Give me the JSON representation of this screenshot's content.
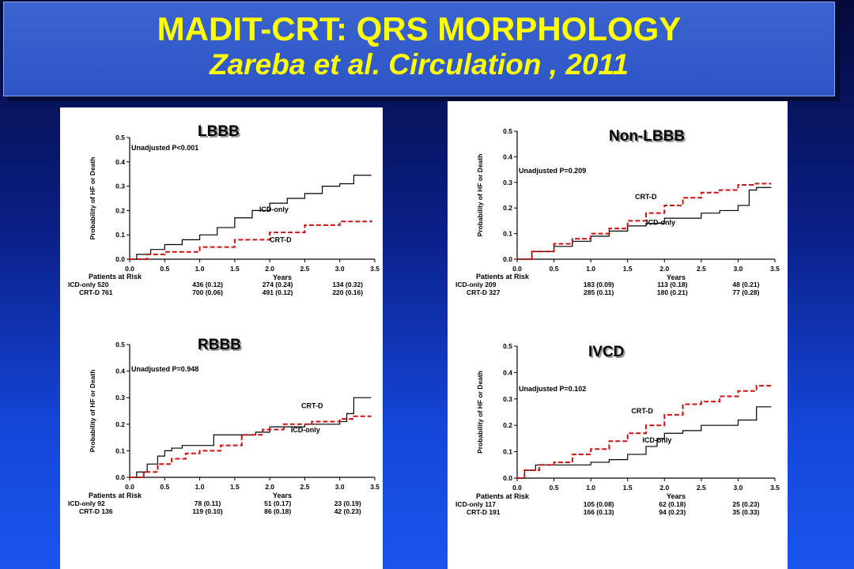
{
  "header": {
    "title": "MADIT-CRT: QRS MORPHOLOGY",
    "subtitle": "Zareba et al. Circulation , 2011"
  },
  "colors": {
    "icd": "#000000",
    "crt": "#cc1111",
    "title": "#ffff00"
  },
  "chart_data": [
    {
      "type": "line",
      "title": "LBBB",
      "ylabel": "Probability of HF or Death",
      "xlabel": "Years",
      "xlim": [
        0,
        3.5
      ],
      "ylim": [
        0,
        0.5
      ],
      "xticks": [
        "0.0",
        "0.5",
        "1.0",
        "1.5",
        "2.0",
        "2.5",
        "3.0",
        "3.5"
      ],
      "yticks": [
        "0.0",
        "0.1",
        "0.2",
        "0.3",
        "0.4",
        "0.5"
      ],
      "annotation": "Unadjusted P<0.001",
      "series": [
        {
          "name": "ICD-only",
          "style": "solid",
          "points": [
            [
              0,
              0
            ],
            [
              0.1,
              0.02
            ],
            [
              0.3,
              0.04
            ],
            [
              0.5,
              0.06
            ],
            [
              0.75,
              0.08
            ],
            [
              1.0,
              0.1
            ],
            [
              1.25,
              0.13
            ],
            [
              1.5,
              0.17
            ],
            [
              1.75,
              0.2
            ],
            [
              2.0,
              0.23
            ],
            [
              2.25,
              0.25
            ],
            [
              2.5,
              0.27
            ],
            [
              2.75,
              0.3
            ],
            [
              3.0,
              0.31
            ],
            [
              3.2,
              0.345
            ],
            [
              3.45,
              0.345
            ]
          ]
        },
        {
          "name": "CRT-D",
          "style": "dashed",
          "points": [
            [
              0,
              0
            ],
            [
              0.25,
              0.02
            ],
            [
              0.5,
              0.03
            ],
            [
              1.0,
              0.05
            ],
            [
              1.5,
              0.08
            ],
            [
              2.0,
              0.11
            ],
            [
              2.5,
              0.14
            ],
            [
              3.0,
              0.155
            ],
            [
              3.45,
              0.16
            ]
          ]
        }
      ],
      "labels": [
        {
          "text": "ICD-only",
          "x": 1.85,
          "y": 0.195
        },
        {
          "text": "CRT-D",
          "x": 2.0,
          "y": 0.07
        }
      ],
      "risk_header": "Patients at Risk",
      "risk_rows": [
        {
          "label": "ICD-only 520",
          "values": [
            "436 (0.12)",
            "274 (0.24)",
            "134 (0.32)"
          ]
        },
        {
          "label": "CRT-D 761",
          "values": [
            "700 (0.06)",
            "491 (0.12)",
            "220 (0.16)"
          ]
        }
      ]
    },
    {
      "type": "line",
      "title": "Non-LBBB",
      "ylabel": "Probability of HF or Death",
      "xlabel": "Years",
      "xlim": [
        0,
        3.5
      ],
      "ylim": [
        0,
        0.5
      ],
      "xticks": [
        "0.0",
        "0.5",
        "1.0",
        "1.5",
        "2.0",
        "2.5",
        "3.0",
        "3.5"
      ],
      "yticks": [
        "0.0",
        "0.1",
        "0.2",
        "0.3",
        "0.4",
        "0.5"
      ],
      "annotation": "Unadjusted P=0.209",
      "series": [
        {
          "name": "ICD-only",
          "style": "solid",
          "points": [
            [
              0,
              0
            ],
            [
              0.2,
              0.03
            ],
            [
              0.5,
              0.05
            ],
            [
              0.75,
              0.07
            ],
            [
              1.0,
              0.09
            ],
            [
              1.25,
              0.11
            ],
            [
              1.5,
              0.13
            ],
            [
              1.75,
              0.14
            ],
            [
              2.0,
              0.16
            ],
            [
              2.5,
              0.18
            ],
            [
              2.75,
              0.19
            ],
            [
              3.0,
              0.21
            ],
            [
              3.15,
              0.27
            ],
            [
              3.25,
              0.28
            ],
            [
              3.45,
              0.28
            ]
          ]
        },
        {
          "name": "CRT-D",
          "style": "dashed",
          "points": [
            [
              0,
              0
            ],
            [
              0.2,
              0.03
            ],
            [
              0.5,
              0.06
            ],
            [
              0.75,
              0.08
            ],
            [
              1.0,
              0.1
            ],
            [
              1.25,
              0.12
            ],
            [
              1.5,
              0.15
            ],
            [
              1.75,
              0.18
            ],
            [
              2.0,
              0.21
            ],
            [
              2.25,
              0.24
            ],
            [
              2.5,
              0.26
            ],
            [
              2.75,
              0.27
            ],
            [
              3.0,
              0.29
            ],
            [
              3.2,
              0.295
            ],
            [
              3.45,
              0.295
            ]
          ]
        }
      ],
      "labels": [
        {
          "text": "CRT-D",
          "x": 1.6,
          "y": 0.235
        },
        {
          "text": "ICD-only",
          "x": 1.75,
          "y": 0.135
        }
      ],
      "risk_header": "Patients at Risk",
      "risk_rows": [
        {
          "label": "ICD-only 209",
          "values": [
            "183 (0.09)",
            "113 (0.18)",
            "48 (0.21)"
          ]
        },
        {
          "label": "CRT-D 327",
          "values": [
            "285 (0.11)",
            "180 (0.21)",
            "77 (0.28)"
          ]
        }
      ]
    },
    {
      "type": "line",
      "title": "RBBB",
      "ylabel": "Probability of HF or Death",
      "xlabel": "Years",
      "xlim": [
        0,
        3.5
      ],
      "ylim": [
        0,
        0.5
      ],
      "xticks": [
        "0.0",
        "0.5",
        "1.0",
        "1.5",
        "2.0",
        "2.5",
        "3.0",
        "3.5"
      ],
      "yticks": [
        "0.0",
        "0.1",
        "0.2",
        "0.3",
        "0.4",
        "0.5"
      ],
      "annotation": "Unadjusted P=0.948",
      "series": [
        {
          "name": "ICD-only",
          "style": "solid",
          "points": [
            [
              0,
              0
            ],
            [
              0.1,
              0.02
            ],
            [
              0.25,
              0.05
            ],
            [
              0.4,
              0.08
            ],
            [
              0.5,
              0.1
            ],
            [
              0.6,
              0.11
            ],
            [
              0.75,
              0.12
            ],
            [
              1.0,
              0.12
            ],
            [
              1.2,
              0.16
            ],
            [
              1.5,
              0.16
            ],
            [
              1.8,
              0.17
            ],
            [
              2.0,
              0.19
            ],
            [
              2.5,
              0.2
            ],
            [
              3.0,
              0.21
            ],
            [
              3.1,
              0.24
            ],
            [
              3.2,
              0.3
            ],
            [
              3.45,
              0.3
            ]
          ]
        },
        {
          "name": "CRT-D",
          "style": "dashed",
          "points": [
            [
              0,
              0
            ],
            [
              0.2,
              0.02
            ],
            [
              0.4,
              0.05
            ],
            [
              0.6,
              0.07
            ],
            [
              0.8,
              0.09
            ],
            [
              1.0,
              0.1
            ],
            [
              1.3,
              0.12
            ],
            [
              1.6,
              0.16
            ],
            [
              1.9,
              0.18
            ],
            [
              2.2,
              0.2
            ],
            [
              2.6,
              0.21
            ],
            [
              3.0,
              0.22
            ],
            [
              3.2,
              0.23
            ],
            [
              3.45,
              0.23
            ]
          ]
        }
      ],
      "labels": [
        {
          "text": "CRT-D",
          "x": 2.45,
          "y": 0.26
        },
        {
          "text": "ICD-only",
          "x": 2.3,
          "y": 0.17
        }
      ],
      "risk_header": "Patients at Risk",
      "risk_rows": [
        {
          "label": "ICD-only 92",
          "values": [
            "78 (0.11)",
            "51 (0.17)",
            "23 (0.19)"
          ]
        },
        {
          "label": "CRT-D 136",
          "values": [
            "119 (0.10)",
            "86 (0.18)",
            "42 (0.23)"
          ]
        }
      ]
    },
    {
      "type": "line",
      "title": "IVCD",
      "ylabel": "Probability of HF or Death",
      "xlabel": "Years",
      "xlim": [
        0,
        3.5
      ],
      "ylim": [
        0,
        0.5
      ],
      "xticks": [
        "0.0",
        "0.5",
        "1.0",
        "1.5",
        "2.0",
        "2.5",
        "3.0",
        "3.5"
      ],
      "yticks": [
        "0.0",
        "0.1",
        "0.2",
        "0.3",
        "0.4",
        "0.5"
      ],
      "annotation": "Unadjusted P=0.102",
      "series": [
        {
          "name": "ICD-only",
          "style": "solid",
          "points": [
            [
              0,
              0
            ],
            [
              0.1,
              0.03
            ],
            [
              0.25,
              0.05
            ],
            [
              0.5,
              0.05
            ],
            [
              0.75,
              0.05
            ],
            [
              1.0,
              0.06
            ],
            [
              1.25,
              0.07
            ],
            [
              1.5,
              0.09
            ],
            [
              1.75,
              0.12
            ],
            [
              1.9,
              0.15
            ],
            [
              2.0,
              0.17
            ],
            [
              2.25,
              0.18
            ],
            [
              2.5,
              0.2
            ],
            [
              3.0,
              0.22
            ],
            [
              3.25,
              0.27
            ],
            [
              3.45,
              0.27
            ]
          ]
        },
        {
          "name": "CRT-D",
          "style": "dashed",
          "points": [
            [
              0,
              0
            ],
            [
              0.1,
              0.03
            ],
            [
              0.3,
              0.05
            ],
            [
              0.5,
              0.06
            ],
            [
              0.75,
              0.09
            ],
            [
              1.0,
              0.11
            ],
            [
              1.25,
              0.14
            ],
            [
              1.5,
              0.17
            ],
            [
              1.75,
              0.2
            ],
            [
              2.0,
              0.24
            ],
            [
              2.25,
              0.28
            ],
            [
              2.5,
              0.29
            ],
            [
              2.75,
              0.31
            ],
            [
              3.0,
              0.33
            ],
            [
              3.25,
              0.35
            ],
            [
              3.45,
              0.35
            ]
          ]
        }
      ],
      "labels": [
        {
          "text": "CRT-D",
          "x": 1.55,
          "y": 0.245
        },
        {
          "text": "ICD-only",
          "x": 1.7,
          "y": 0.135
        }
      ],
      "risk_header": "Patients at Risk",
      "risk_rows": [
        {
          "label": "ICD-only 117",
          "values": [
            "105 (0.08)",
            "62 (0.18)",
            "25 (0.23)"
          ]
        },
        {
          "label": "CRT-D 191",
          "values": [
            "166 (0.13)",
            "94 (0.23)",
            "35 (0.33)"
          ]
        }
      ]
    }
  ]
}
